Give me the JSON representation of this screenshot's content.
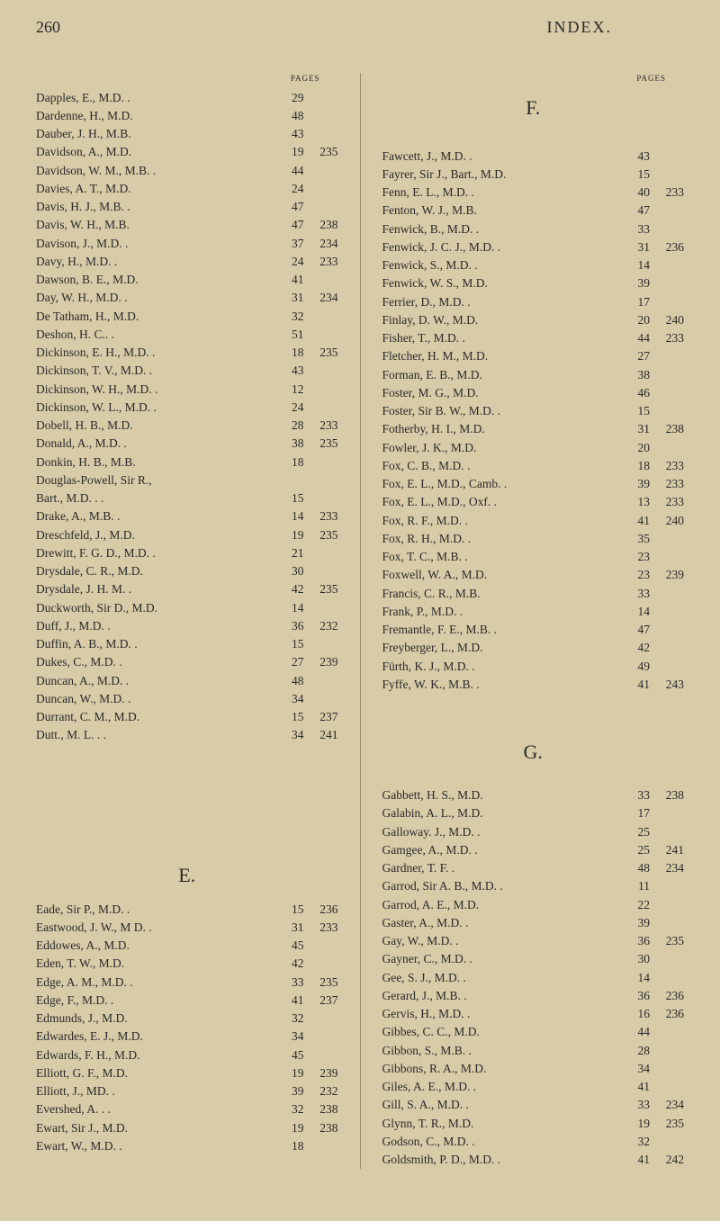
{
  "header": {
    "page_number": "260",
    "title": "INDEX."
  },
  "pages_label": "PAGES",
  "section_letters": {
    "E": "E.",
    "F": "F.",
    "G": "G."
  },
  "leftColumn": [
    {
      "name": "Dapples, E., M.D.  .",
      "p1": "29",
      "p2": ""
    },
    {
      "name": "Dardenne, H., M.D.",
      "p1": "48",
      "p2": ""
    },
    {
      "name": "Dauber, J. H., M.B.",
      "p1": "43",
      "p2": ""
    },
    {
      "name": "Davidson, A., M.D.",
      "p1": "19",
      "p2": "235"
    },
    {
      "name": "Davidson, W. M., M.B. .",
      "p1": "44",
      "p2": ""
    },
    {
      "name": "Davies, A. T., M.D.",
      "p1": "24",
      "p2": ""
    },
    {
      "name": "Davis, H. J., M.B.  .",
      "p1": "47",
      "p2": ""
    },
    {
      "name": "Davis, W. H., M.B.",
      "p1": "47",
      "p2": "238"
    },
    {
      "name": "Davison, J., M.D.  .",
      "p1": "37",
      "p2": "234"
    },
    {
      "name": "Davy, H., M.D.  .",
      "p1": "24",
      "p2": "233"
    },
    {
      "name": "Dawson, B. E., M.D.",
      "p1": "41",
      "p2": ""
    },
    {
      "name": "Day, W. H., M.D.  .",
      "p1": "31",
      "p2": "234"
    },
    {
      "name": "De Tatham, H., M.D.",
      "p1": "32",
      "p2": ""
    },
    {
      "name": "Deshon, H. C..  .",
      "p1": "51",
      "p2": ""
    },
    {
      "name": "Dickinson, E. H., M.D. .",
      "p1": "18",
      "p2": "235"
    },
    {
      "name": "Dickinson, T. V., M.D. .",
      "p1": "43",
      "p2": ""
    },
    {
      "name": "Dickinson, W. H., M.D. .",
      "p1": "12",
      "p2": ""
    },
    {
      "name": "Dickinson, W. L., M.D. .",
      "p1": "24",
      "p2": ""
    },
    {
      "name": "Dobell, H. B., M.D.",
      "p1": "28",
      "p2": "233"
    },
    {
      "name": "Donald, A., M.D.  .",
      "p1": "38",
      "p2": "235"
    },
    {
      "name": "Donkin, H. B., M.B.",
      "p1": "18",
      "p2": ""
    },
    {
      "name": "Douglas-Powell, Sir R.,",
      "p1": "",
      "p2": ""
    },
    {
      "name": "  Bart., M.D. .  .",
      "p1": "15",
      "p2": ""
    },
    {
      "name": "Drake, A., M.B.  .",
      "p1": "14",
      "p2": "233"
    },
    {
      "name": "Dreschfeld, J., M.D.",
      "p1": "19",
      "p2": "235"
    },
    {
      "name": "Drewitt, F. G. D., M.D. .",
      "p1": "21",
      "p2": ""
    },
    {
      "name": "Drysdale, C. R., M.D.",
      "p1": "30",
      "p2": ""
    },
    {
      "name": "Drysdale, J. H. M. .",
      "p1": "42",
      "p2": "235"
    },
    {
      "name": "Duckworth, Sir D., M.D.",
      "p1": "14",
      "p2": ""
    },
    {
      "name": "Duff, J., M.D.  .",
      "p1": "36",
      "p2": "232"
    },
    {
      "name": "Duffin, A. B., M.D. .",
      "p1": "15",
      "p2": ""
    },
    {
      "name": "Dukes, C., M.D.  .",
      "p1": "27",
      "p2": "239"
    },
    {
      "name": "Duncan, A., M.D.  .",
      "p1": "48",
      "p2": ""
    },
    {
      "name": "Duncan, W., M.D.  .",
      "p1": "34",
      "p2": ""
    },
    {
      "name": "Durrant, C. M., M.D.",
      "p1": "15",
      "p2": "237"
    },
    {
      "name": "Dutt., M. L.  .  .",
      "p1": "34",
      "p2": "241"
    }
  ],
  "leftColumnE": [
    {
      "name": "Eade, Sir P., M.D. .",
      "p1": "15",
      "p2": "236"
    },
    {
      "name": "Eastwood, J. W., M D. .",
      "p1": "31",
      "p2": "233"
    },
    {
      "name": "Eddowes, A., M.D.",
      "p1": "45",
      "p2": ""
    },
    {
      "name": "Eden, T. W., M.D.",
      "p1": "42",
      "p2": ""
    },
    {
      "name": "Edge, A. M., M.D. .",
      "p1": "33",
      "p2": "235"
    },
    {
      "name": "Edge, F., M.D.  .",
      "p1": "41",
      "p2": "237"
    },
    {
      "name": "Edmunds, J., M.D.",
      "p1": "32",
      "p2": ""
    },
    {
      "name": "Edwardes, E. J., M.D.",
      "p1": "34",
      "p2": ""
    },
    {
      "name": "Edwards, F. H., M.D.",
      "p1": "45",
      "p2": ""
    },
    {
      "name": "Elliott, G. F., M.D.",
      "p1": "19",
      "p2": "239"
    },
    {
      "name": "Elliott, J., MD.  .",
      "p1": "39",
      "p2": "232"
    },
    {
      "name": "Evershed, A. .  .",
      "p1": "32",
      "p2": "238"
    },
    {
      "name": "Ewart, Sir J., M.D.",
      "p1": "19",
      "p2": "238"
    },
    {
      "name": "Ewart, W., M.D.  .",
      "p1": "18",
      "p2": ""
    }
  ],
  "rightColumnF": [
    {
      "name": "Fawcett, J., M.D.  .",
      "p1": "43",
      "p2": ""
    },
    {
      "name": "Fayrer, Sir J., Bart., M.D.",
      "p1": "15",
      "p2": ""
    },
    {
      "name": "Fenn, E. L., M.D.  .",
      "p1": "40",
      "p2": "233"
    },
    {
      "name": "Fenton, W. J., M.B.",
      "p1": "47",
      "p2": ""
    },
    {
      "name": "Fenwick, B., M.D.  .",
      "p1": "33",
      "p2": ""
    },
    {
      "name": "Fenwick, J. C. J., M.D. .",
      "p1": "31",
      "p2": "236"
    },
    {
      "name": "Fenwick, S., M.D.  .",
      "p1": "14",
      "p2": ""
    },
    {
      "name": "Fenwick, W. S., M.D.",
      "p1": "39",
      "p2": ""
    },
    {
      "name": "Ferrier, D., M.D.  .",
      "p1": "17",
      "p2": ""
    },
    {
      "name": "Finlay, D. W., M.D.",
      "p1": "20",
      "p2": "240"
    },
    {
      "name": "Fisher, T., M.D.  .",
      "p1": "44",
      "p2": "233"
    },
    {
      "name": "Fletcher, H. M., M.D.",
      "p1": "27",
      "p2": ""
    },
    {
      "name": "Forman, E. B., M.D.",
      "p1": "38",
      "p2": ""
    },
    {
      "name": "Foster, M. G., M.D.",
      "p1": "46",
      "p2": ""
    },
    {
      "name": "Foster, Sir B. W., M.D. .",
      "p1": "15",
      "p2": ""
    },
    {
      "name": "Fotherby, H. I., M.D.",
      "p1": "31",
      "p2": "238"
    },
    {
      "name": "Fowler, J. K., M.D.",
      "p1": "20",
      "p2": ""
    },
    {
      "name": "Fox, C. B., M.D.  .",
      "p1": "18",
      "p2": "233"
    },
    {
      "name": "Fox, E. L., M.D., Camb. .",
      "p1": "39",
      "p2": "233"
    },
    {
      "name": "Fox, E. L., M.D., Oxf. .",
      "p1": "13",
      "p2": "233"
    },
    {
      "name": "Fox, R. F., M.D.  .",
      "p1": "41",
      "p2": "240"
    },
    {
      "name": "Fox, R. H., M.D.  .",
      "p1": "35",
      "p2": ""
    },
    {
      "name": "Fox, T. C., M.B.  .",
      "p1": "23",
      "p2": ""
    },
    {
      "name": "Foxwell, W. A., M.D.",
      "p1": "23",
      "p2": "239"
    },
    {
      "name": "Francis, C. R., M.B.",
      "p1": "33",
      "p2": ""
    },
    {
      "name": "Frank, P., M.D.  .",
      "p1": "14",
      "p2": ""
    },
    {
      "name": "Fremantle, F. E., M.B. .",
      "p1": "47",
      "p2": ""
    },
    {
      "name": "Freyberger, L., M.D.",
      "p1": "42",
      "p2": ""
    },
    {
      "name": "Fürth, K. J., M.D. .",
      "p1": "49",
      "p2": ""
    },
    {
      "name": "Fyffe, W. K., M.B. .",
      "p1": "41",
      "p2": "243"
    }
  ],
  "rightColumnG": [
    {
      "name": "Gabbett, H. S., M.D.",
      "p1": "33",
      "p2": "238"
    },
    {
      "name": "Galabin, A. L., M.D.",
      "p1": "17",
      "p2": ""
    },
    {
      "name": "Galloway. J., M.D. .",
      "p1": "25",
      "p2": ""
    },
    {
      "name": "Gamgee, A., M.D.  .",
      "p1": "25",
      "p2": "241"
    },
    {
      "name": "Gardner, T. F.  .",
      "p1": "48",
      "p2": "234"
    },
    {
      "name": "Garrod, Sir A. B., M.D. .",
      "p1": "11",
      "p2": ""
    },
    {
      "name": "Garrod, A. E., M.D.",
      "p1": "22",
      "p2": ""
    },
    {
      "name": "Gaster, A., M.D.  .",
      "p1": "39",
      "p2": ""
    },
    {
      "name": "Gay, W., M.D.  .",
      "p1": "36",
      "p2": "235"
    },
    {
      "name": "Gayner, C., M.D.  .",
      "p1": "30",
      "p2": ""
    },
    {
      "name": "Gee, S. J., M.D.  .",
      "p1": "14",
      "p2": ""
    },
    {
      "name": "Gerard, J., M.B.  .",
      "p1": "36",
      "p2": "236"
    },
    {
      "name": "Gervis, H., M.D.  .",
      "p1": "16",
      "p2": "236"
    },
    {
      "name": "Gibbes, C. C., M.D.",
      "p1": "44",
      "p2": ""
    },
    {
      "name": "Gibbon, S., M.B.  .",
      "p1": "28",
      "p2": ""
    },
    {
      "name": "Gibbons, R. A., M.D.",
      "p1": "34",
      "p2": ""
    },
    {
      "name": "Giles, A. E., M.D.  .",
      "p1": "41",
      "p2": ""
    },
    {
      "name": "Gill, S. A., M.D.  .",
      "p1": "33",
      "p2": "234"
    },
    {
      "name": "Glynn, T. R., M.D.",
      "p1": "19",
      "p2": "235"
    },
    {
      "name": "Godson, C., M.D.  .",
      "p1": "32",
      "p2": ""
    },
    {
      "name": "Goldsmith, P. D., M.D. .",
      "p1": "41",
      "p2": "242"
    }
  ],
  "style": {
    "background_color": "#d8cba8",
    "text_color": "#2a2a2a",
    "font_family": "Georgia, 'Times New Roman', serif",
    "body_font_size": 13.5,
    "header_font_size": 18,
    "section_letter_font_size": 22,
    "pages_label_font_size": 9
  }
}
